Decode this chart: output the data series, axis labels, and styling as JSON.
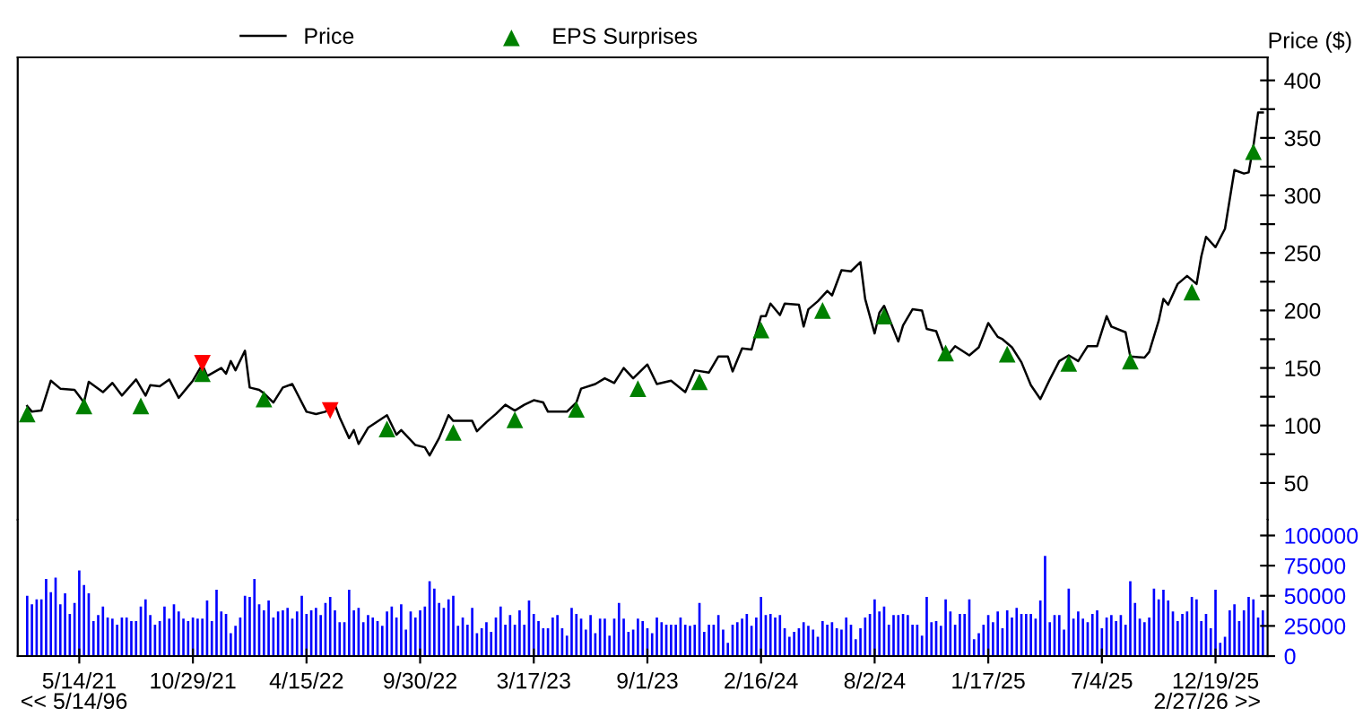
{
  "chart_data": [
    {
      "type": "line",
      "ylabel": "Price ($)",
      "legend": "top",
      "grid": false,
      "tick_labels": "y",
      "xlim": [
        "2021-02-12",
        "2026-03-06"
      ],
      "ylim": [
        18,
        420
      ],
      "yticks": [
        50,
        {
          "value": 75,
          "label": null
        },
        100,
        {
          "value": 125,
          "label": null
        },
        150,
        {
          "value": 175,
          "label": null
        },
        200,
        {
          "value": 225,
          "label": null
        },
        250,
        {
          "value": 275,
          "label": null
        },
        300,
        {
          "value": 325,
          "label": null
        },
        350,
        {
          "value": 375,
          "label": null
        },
        400
      ],
      "series": [
        {
          "name": "Price",
          "type": "line",
          "color": "#000000",
          "line_style": "solid",
          "marker": "none",
          "x": [
            "2021-02-26",
            "2021-03-05",
            "2021-03-19",
            "2021-04-02",
            "2021-04-16",
            "2021-05-07",
            "2021-05-21",
            "2021-05-28",
            "2021-06-18",
            "2021-07-02",
            "2021-07-16",
            "2021-08-06",
            "2021-08-20",
            "2021-08-27",
            "2021-09-10",
            "2021-09-24",
            "2021-10-08",
            "2021-10-22",
            "2021-10-29",
            "2021-11-12",
            "2021-11-19",
            "2021-12-10",
            "2021-12-17",
            "2021-12-24",
            "2021-12-31",
            "2022-01-14",
            "2022-01-21",
            "2022-02-04",
            "2022-02-11",
            "2022-02-25",
            "2022-03-11",
            "2022-03-25",
            "2022-04-15",
            "2022-04-29",
            "2022-05-13",
            "2022-05-27",
            "2022-06-03",
            "2022-06-17",
            "2022-06-24",
            "2022-07-01",
            "2022-07-15",
            "2022-08-12",
            "2022-08-26",
            "2022-09-02",
            "2022-09-23",
            "2022-10-07",
            "2022-10-14",
            "2022-10-28",
            "2022-11-11",
            "2022-11-18",
            "2022-12-16",
            "2022-12-23",
            "2023-01-06",
            "2023-01-20",
            "2023-02-03",
            "2023-02-17",
            "2023-03-03",
            "2023-03-17",
            "2023-03-31",
            "2023-04-07",
            "2023-05-05",
            "2023-05-19",
            "2023-05-26",
            "2023-06-16",
            "2023-06-30",
            "2023-07-14",
            "2023-07-28",
            "2023-08-11",
            "2023-09-01",
            "2023-09-15",
            "2023-10-06",
            "2023-10-27",
            "2023-11-10",
            "2023-12-01",
            "2023-12-15",
            "2023-12-29",
            "2024-01-05",
            "2024-01-19",
            "2024-02-02",
            "2024-02-16",
            "2024-02-23",
            "2024-03-01",
            "2024-03-15",
            "2024-03-22",
            "2024-04-12",
            "2024-04-19",
            "2024-04-26",
            "2024-05-10",
            "2024-05-24",
            "2024-05-31",
            "2024-06-14",
            "2024-06-28",
            "2024-07-12",
            "2024-07-19",
            "2024-08-02",
            "2024-08-09",
            "2024-08-16",
            "2024-09-06",
            "2024-09-13",
            "2024-09-27",
            "2024-10-11",
            "2024-10-18",
            "2024-11-01",
            "2024-11-15",
            "2024-11-29",
            "2024-12-20",
            "2025-01-03",
            "2025-01-17",
            "2025-01-31",
            "2025-02-07",
            "2025-02-21",
            "2025-03-07",
            "2025-03-21",
            "2025-04-04",
            "2025-04-18",
            "2025-05-02",
            "2025-05-16",
            "2025-05-30",
            "2025-06-13",
            "2025-06-27",
            "2025-07-11",
            "2025-07-18",
            "2025-08-08",
            "2025-08-15",
            "2025-09-05",
            "2025-09-12",
            "2025-09-26",
            "2025-10-03",
            "2025-10-10",
            "2025-10-24",
            "2025-11-07",
            "2025-11-21",
            "2025-11-28",
            "2025-12-05",
            "2025-12-19",
            "2026-01-02",
            "2026-01-16",
            "2026-01-30",
            "2026-02-06",
            "2026-02-13",
            "2026-02-20",
            "2026-02-27"
          ],
          "values": [
            117,
            112,
            113,
            139,
            132,
            131,
            120,
            138,
            129,
            137,
            126,
            140,
            126,
            135,
            134,
            140,
            124,
            134,
            139,
            153,
            143,
            150,
            145,
            156,
            148,
            165,
            133,
            131,
            128,
            120,
            133,
            136,
            112,
            110,
            112,
            118,
            107,
            89,
            96,
            84,
            98,
            109,
            92,
            96,
            83,
            81,
            74,
            89,
            109,
            104,
            104,
            95,
            103,
            110,
            118,
            113,
            118,
            122,
            120,
            112,
            112,
            120,
            132,
            136,
            141,
            137,
            150,
            141,
            153,
            136,
            139,
            129,
            148,
            146,
            160,
            160,
            147,
            167,
            166,
            195,
            195,
            206,
            196,
            206,
            205,
            186,
            201,
            208,
            217,
            213,
            235,
            234,
            242,
            210,
            180,
            198,
            204,
            173,
            187,
            201,
            200,
            184,
            182,
            159,
            169,
            161,
            168,
            189,
            177,
            175,
            168,
            155,
            135,
            123,
            140,
            156,
            161,
            156,
            169,
            169,
            195,
            186,
            181,
            160,
            159,
            164,
            191,
            210,
            205,
            223,
            230,
            223,
            247,
            264,
            255,
            271,
            322,
            319,
            320,
            343,
            372,
            372
          ]
        },
        {
          "name": "EPS Surprises",
          "type": "scatter",
          "color": "#008000",
          "marker": "triangle",
          "x": [
            "2021-02-26",
            "2021-05-21",
            "2021-08-13",
            "2021-11-12",
            "2022-02-11",
            "2022-08-12",
            "2022-11-18",
            "2023-02-17",
            "2023-05-19",
            "2023-08-18",
            "2023-11-17",
            "2024-02-16",
            "2024-05-17",
            "2024-08-16",
            "2024-11-15",
            "2025-02-14",
            "2025-05-16",
            "2025-08-15",
            "2025-11-14",
            "2026-02-13"
          ],
          "values": [
            110,
            117,
            117,
            145,
            123,
            97,
            94,
            105,
            114,
            132,
            138,
            183,
            200,
            195,
            163,
            162,
            154,
            156,
            216,
            338
          ]
        },
        {
          "type": "scatter",
          "color": "#ff0000",
          "marker": "triangle-down",
          "x": [
            "2021-11-12",
            "2022-05-20"
          ],
          "values": [
            154,
            113
          ]
        }
      ]
    },
    {
      "type": "bar",
      "grid": false,
      "xlim": [
        "2021-02-12",
        "2026-03-06"
      ],
      "ylim": [
        0,
        113000
      ],
      "yticks": [
        0,
        25000,
        50000,
        75000,
        100000
      ],
      "xticks": [
        {
          "value": "2021-05-14",
          "label": "5/14/21"
        },
        {
          "value": "2021-10-29",
          "label": "10/29/21"
        },
        {
          "value": "2022-04-15",
          "label": "4/15/22"
        },
        {
          "value": "2022-09-30",
          "label": "9/30/22"
        },
        {
          "value": "2023-03-17",
          "label": "3/17/23"
        },
        {
          "value": "2023-09-01",
          "label": "9/1/23"
        },
        {
          "value": "2024-02-16",
          "label": "2/16/24"
        },
        {
          "value": "2024-08-02",
          "label": "8/2/24"
        },
        {
          "value": "2025-01-17",
          "label": "1/17/25"
        },
        {
          "value": "2025-07-04",
          "label": "7/4/25"
        },
        {
          "value": "2025-12-19",
          "label": "12/19/25"
        }
      ],
      "annotations": [
        "<< 5/14/96",
        "2/27/26 >>"
      ],
      "x": [
        "2021-02-26",
        "2021-03-05",
        "2021-03-12",
        "2021-03-19",
        "2021-03-26",
        "2021-04-02",
        "2021-04-09",
        "2021-04-16",
        "2021-04-23",
        "2021-04-30",
        "2021-05-07",
        "2021-05-14",
        "2021-05-21",
        "2021-05-28",
        "2021-06-04",
        "2021-06-11",
        "2021-06-18",
        "2021-06-25",
        "2021-07-02",
        "2021-07-09",
        "2021-07-16",
        "2021-07-23",
        "2021-07-30",
        "2021-08-06",
        "2021-08-13",
        "2021-08-20",
        "2021-08-27",
        "2021-09-03",
        "2021-09-10",
        "2021-09-17",
        "2021-09-24",
        "2021-10-01",
        "2021-10-08",
        "2021-10-15",
        "2021-10-22",
        "2021-10-29",
        "2021-11-05",
        "2021-11-12",
        "2021-11-19",
        "2021-11-26",
        "2021-12-03",
        "2021-12-10",
        "2021-12-17",
        "2021-12-24",
        "2021-12-31",
        "2022-01-07",
        "2022-01-14",
        "2022-01-21",
        "2022-01-28",
        "2022-02-04",
        "2022-02-11",
        "2022-02-18",
        "2022-02-25",
        "2022-03-04",
        "2022-03-11",
        "2022-03-18",
        "2022-03-25",
        "2022-04-01",
        "2022-04-08",
        "2022-04-15",
        "2022-04-22",
        "2022-04-29",
        "2022-05-06",
        "2022-05-13",
        "2022-05-20",
        "2022-05-27",
        "2022-06-03",
        "2022-06-10",
        "2022-06-17",
        "2022-06-24",
        "2022-07-01",
        "2022-07-08",
        "2022-07-15",
        "2022-07-22",
        "2022-07-29",
        "2022-08-05",
        "2022-08-12",
        "2022-08-19",
        "2022-08-26",
        "2022-09-02",
        "2022-09-09",
        "2022-09-16",
        "2022-09-23",
        "2022-09-30",
        "2022-10-07",
        "2022-10-14",
        "2022-10-21",
        "2022-10-28",
        "2022-11-04",
        "2022-11-11",
        "2022-11-18",
        "2022-11-25",
        "2022-12-02",
        "2022-12-09",
        "2022-12-16",
        "2022-12-23",
        "2022-12-30",
        "2023-01-06",
        "2023-01-13",
        "2023-01-20",
        "2023-01-27",
        "2023-02-03",
        "2023-02-10",
        "2023-02-17",
        "2023-02-24",
        "2023-03-03",
        "2023-03-10",
        "2023-03-17",
        "2023-03-24",
        "2023-03-31",
        "2023-04-07",
        "2023-04-14",
        "2023-04-21",
        "2023-04-28",
        "2023-05-05",
        "2023-05-12",
        "2023-05-19",
        "2023-05-26",
        "2023-06-02",
        "2023-06-09",
        "2023-06-16",
        "2023-06-23",
        "2023-06-30",
        "2023-07-07",
        "2023-07-14",
        "2023-07-21",
        "2023-07-28",
        "2023-08-04",
        "2023-08-11",
        "2023-08-18",
        "2023-08-25",
        "2023-09-01",
        "2023-09-08",
        "2023-09-15",
        "2023-09-22",
        "2023-09-29",
        "2023-10-06",
        "2023-10-13",
        "2023-10-20",
        "2023-10-27",
        "2023-11-03",
        "2023-11-10",
        "2023-11-17",
        "2023-11-24",
        "2023-12-01",
        "2023-12-08",
        "2023-12-15",
        "2023-12-22",
        "2023-12-29",
        "2024-01-05",
        "2024-01-12",
        "2024-01-19",
        "2024-01-26",
        "2024-02-02",
        "2024-02-09",
        "2024-02-16",
        "2024-02-23",
        "2024-03-01",
        "2024-03-08",
        "2024-03-15",
        "2024-03-22",
        "2024-03-29",
        "2024-04-05",
        "2024-04-12",
        "2024-04-19",
        "2024-04-26",
        "2024-05-03",
        "2024-05-10",
        "2024-05-17",
        "2024-05-24",
        "2024-05-31",
        "2024-06-07",
        "2024-06-14",
        "2024-06-21",
        "2024-06-28",
        "2024-07-05",
        "2024-07-12",
        "2024-07-19",
        "2024-07-26",
        "2024-08-02",
        "2024-08-09",
        "2024-08-16",
        "2024-08-23",
        "2024-08-30",
        "2024-09-06",
        "2024-09-13",
        "2024-09-20",
        "2024-09-27",
        "2024-10-04",
        "2024-10-11",
        "2024-10-18",
        "2024-10-25",
        "2024-11-01",
        "2024-11-08",
        "2024-11-15",
        "2024-11-22",
        "2024-11-29",
        "2024-12-06",
        "2024-12-13",
        "2024-12-20",
        "2024-12-27",
        "2025-01-03",
        "2025-01-10",
        "2025-01-17",
        "2025-01-24",
        "2025-01-31",
        "2025-02-07",
        "2025-02-14",
        "2025-02-21",
        "2025-02-28",
        "2025-03-07",
        "2025-03-14",
        "2025-03-21",
        "2025-03-28",
        "2025-04-04",
        "2025-04-11",
        "2025-04-18",
        "2025-04-25",
        "2025-05-02",
        "2025-05-09",
        "2025-05-16",
        "2025-05-23",
        "2025-05-30",
        "2025-06-06",
        "2025-06-13",
        "2025-06-20",
        "2025-06-27",
        "2025-07-04",
        "2025-07-11",
        "2025-07-18",
        "2025-07-25",
        "2025-08-01",
        "2025-08-08",
        "2025-08-15",
        "2025-08-22",
        "2025-08-29",
        "2025-09-05",
        "2025-09-12",
        "2025-09-19",
        "2025-09-26",
        "2025-10-03",
        "2025-10-10",
        "2025-10-17",
        "2025-10-24",
        "2025-10-31",
        "2025-11-07",
        "2025-11-14",
        "2025-11-21",
        "2025-11-28",
        "2025-12-05",
        "2025-12-12",
        "2025-12-19",
        "2025-12-26",
        "2026-01-02",
        "2026-01-09",
        "2026-01-16",
        "2026-01-23",
        "2026-01-30",
        "2026-02-06",
        "2026-02-13",
        "2026-02-20",
        "2026-02-27"
      ],
      "series": [
        {
          "color": "#0000ff",
          "values": [
            50000,
            43000,
            47000,
            47000,
            64000,
            53000,
            65000,
            43000,
            52000,
            35000,
            44000,
            71000,
            59000,
            52000,
            29000,
            34000,
            41000,
            32000,
            31000,
            26000,
            32000,
            32000,
            29000,
            29000,
            41000,
            47000,
            34000,
            26000,
            29000,
            41000,
            31000,
            43000,
            37000,
            31000,
            29000,
            32000,
            31000,
            31000,
            46000,
            29000,
            55000,
            37000,
            35000,
            19000,
            25000,
            32000,
            50000,
            49000,
            64000,
            43000,
            38000,
            46000,
            32000,
            37000,
            38000,
            40000,
            31000,
            37000,
            50000,
            35000,
            38000,
            40000,
            34000,
            44000,
            49000,
            38000,
            28000,
            28000,
            55000,
            38000,
            40000,
            28000,
            34000,
            32000,
            29000,
            25000,
            37000,
            41000,
            32000,
            43000,
            22000,
            37000,
            32000,
            38000,
            41000,
            62000,
            56000,
            44000,
            40000,
            47000,
            50000,
            25000,
            32000,
            26000,
            40000,
            19000,
            23000,
            28000,
            20000,
            32000,
            41000,
            26000,
            34000,
            26000,
            38000,
            26000,
            46000,
            35000,
            29000,
            23000,
            23000,
            32000,
            34000,
            23000,
            17000,
            40000,
            35000,
            31000,
            22000,
            34000,
            19000,
            31000,
            31000,
            17000,
            31000,
            44000,
            31000,
            20000,
            22000,
            31000,
            29000,
            23000,
            19000,
            32000,
            28000,
            26000,
            26000,
            26000,
            32000,
            26000,
            25000,
            26000,
            44000,
            20000,
            26000,
            26000,
            34000,
            22000,
            11000,
            26000,
            28000,
            31000,
            35000,
            25000,
            32000,
            49000,
            34000,
            35000,
            32000,
            34000,
            23000,
            16000,
            20000,
            23000,
            28000,
            25000,
            22000,
            16000,
            29000,
            26000,
            28000,
            23000,
            22000,
            32000,
            26000,
            14000,
            23000,
            32000,
            35000,
            47000,
            37000,
            41000,
            26000,
            34000,
            34000,
            35000,
            34000,
            26000,
            26000,
            17000,
            49000,
            28000,
            29000,
            25000,
            47000,
            37000,
            26000,
            35000,
            35000,
            47000,
            14000,
            19000,
            26000,
            34000,
            28000,
            37000,
            23000,
            38000,
            32000,
            40000,
            35000,
            35000,
            35000,
            31000,
            46000,
            83000,
            28000,
            34000,
            34000,
            22000,
            56000,
            31000,
            37000,
            31000,
            28000,
            35000,
            38000,
            23000,
            32000,
            34000,
            29000,
            34000,
            26000,
            62000,
            44000,
            31000,
            28000,
            32000,
            56000,
            47000,
            55000,
            46000,
            37000,
            29000,
            35000,
            37000,
            49000,
            47000,
            29000,
            35000,
            23000,
            55000,
            11000,
            16000,
            38000,
            43000,
            29000,
            38000,
            49000,
            47000,
            32000,
            38000
          ]
        }
      ]
    }
  ]
}
